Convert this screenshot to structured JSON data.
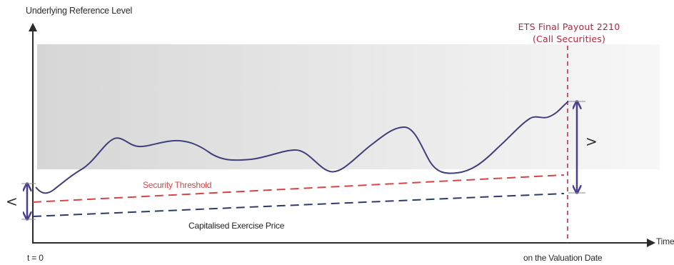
{
  "axes": {
    "y_label": "Underlying Reference Level",
    "x_label": "Time"
  },
  "x_ticks": {
    "start": "t = 0",
    "end": "on the Valuation Date"
  },
  "lines": {
    "security_threshold": "Security Threshold",
    "capitalised_exercise_price": "Capitalised Exercise Price"
  },
  "payout": {
    "title": "ETS Final Payout 2210",
    "subtitle": "(Call Securities)"
  },
  "symbols": {
    "left": "<",
    "right": ">"
  },
  "colors": {
    "threshold": "#d64545",
    "exercise": "#2e3a68",
    "underlying": "#3f3f7a",
    "valuation": "#b5243f",
    "arrow": "#4a3f8f",
    "band": "#d8d8d8"
  }
}
